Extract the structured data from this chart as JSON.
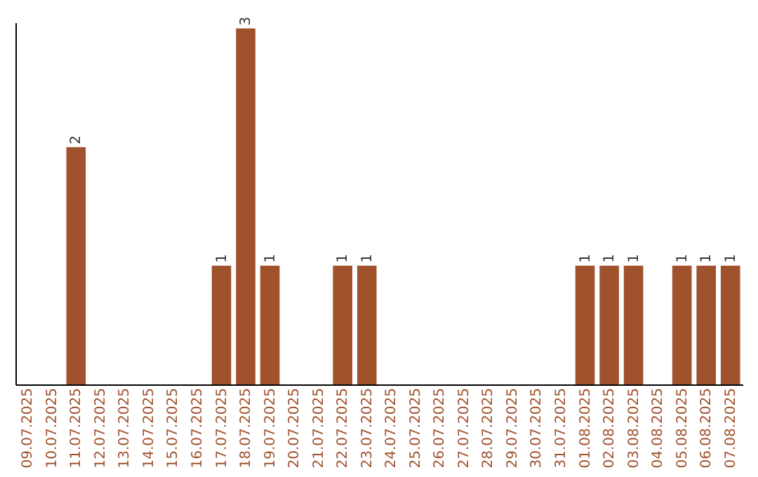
{
  "chart_data": {
    "type": "bar",
    "categories": [
      "09.07.2025",
      "10.07.2025",
      "11.07.2025",
      "12.07.2025",
      "13.07.2025",
      "14.07.2025",
      "15.07.2025",
      "16.07.2025",
      "17.07.2025",
      "18.07.2025",
      "19.07.2025",
      "20.07.2025",
      "21.07.2025",
      "22.07.2025",
      "23.07.2025",
      "24.07.2025",
      "25.07.2025",
      "26.07.2025",
      "27.07.2025",
      "28.07.2025",
      "29.07.2025",
      "30.07.2025",
      "31.07.2025",
      "01.08.2025",
      "02.08.2025",
      "03.08.2025",
      "04.08.2025",
      "05.08.2025",
      "06.08.2025",
      "07.08.2025"
    ],
    "values": [
      0,
      0,
      2,
      0,
      0,
      0,
      0,
      0,
      1,
      3,
      1,
      0,
      0,
      1,
      1,
      0,
      0,
      0,
      0,
      0,
      0,
      0,
      0,
      1,
      1,
      1,
      0,
      1,
      1,
      1
    ],
    "value_labels": [
      null,
      null,
      "2",
      null,
      null,
      null,
      null,
      null,
      "1",
      "3",
      "1",
      null,
      null,
      "1",
      "1",
      null,
      null,
      null,
      null,
      null,
      null,
      null,
      null,
      "1",
      "1",
      "1",
      null,
      "1",
      "1",
      "1"
    ],
    "color": "#a0522d",
    "ylim": [
      0,
      3.05
    ],
    "tick_labels": "x",
    "grid": false
  }
}
